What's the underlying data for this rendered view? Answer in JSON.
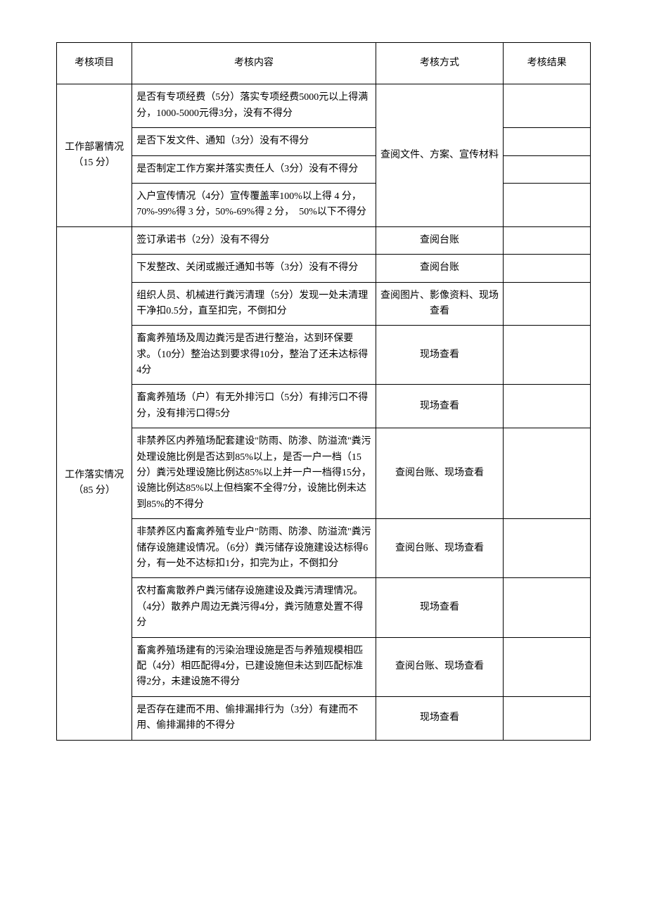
{
  "headers": {
    "project": "考核项目",
    "content": "考核内容",
    "method": "考核方式",
    "result": "考核结果"
  },
  "sections": [
    {
      "project": "工作部署情况（15 分）",
      "rows": [
        {
          "content": "是否有专项经费（5分）落实专项经费5000元以上得满分，1000-5000元得3分，没有不得分",
          "method": "查阅文件、方案、宣传材料",
          "method_rowspan": 4
        },
        {
          "content": "是否下发文件、通知（3分）没有不得分"
        },
        {
          "content": "是否制定工作方案并落实责任人（3分）没有不得分"
        },
        {
          "content": "入户宣传情况（4分）宣传覆盖率100%以上得 4 分，70%-99%得 3 分，50%-69%得 2 分，　50%以下不得分"
        }
      ]
    },
    {
      "project": "工作落实情况（85 分）",
      "rows": [
        {
          "content": "签订承诺书（2分）没有不得分",
          "method": "查阅台账"
        },
        {
          "content": "下发整改、关闭或搬迁通知书等（3分）没有不得分",
          "method": "查阅台账"
        },
        {
          "content": "组织人员、机械进行粪污清理（5分）发现一处未清理干净扣0.5分，直至扣完，不倒扣分",
          "method": "查阅图片、影像资料、现场查看"
        },
        {
          "content": "畜禽养殖场及周边粪污是否进行整治，达到环保要求。（10分）整治达到要求得10分，整治了还未达标得4分",
          "method": "现场查看"
        },
        {
          "content": "畜禽养殖场（户）有无外排污口（5分）有排污口不得分，没有排污口得5分",
          "method": "现场查看"
        },
        {
          "content": "非禁养区内养殖场配套建设\"防雨、防渗、防溢流\"粪污处理设施比例是否达到85%以上，是否一户一档（15分）粪污处理设施比例达85%以上并一户一档得15分，设施比例达85%以上但档案不全得7分，设施比例未达到85%的不得分",
          "method": "查阅台账、现场查看"
        },
        {
          "content": "非禁养区内畜禽养殖专业户\"防雨、防渗、防溢流\"粪污储存设施建设情况。（6分）粪污储存设施建设达标得6分，有一处不达标扣1分，扣完为止，不倒扣分",
          "method": "查阅台账、现场查看"
        },
        {
          "content": "农村畜禽散养户粪污储存设施建设及粪污清理情况。（4分）散养户周边无粪污得4分，粪污随意处置不得分",
          "method": "现场查看"
        },
        {
          "content": "畜禽养殖场建有的污染治理设施是否与养殖规模相匹配（4分）相匹配得4分，已建设施但未达到匹配标准得2分，未建设施不得分",
          "method": "查阅台账、现场查看"
        },
        {
          "content": "是否存在建而不用、偷排漏排行为（3分）有建而不用、偷排漏排的不得分",
          "method": "现场查看"
        }
      ]
    }
  ]
}
